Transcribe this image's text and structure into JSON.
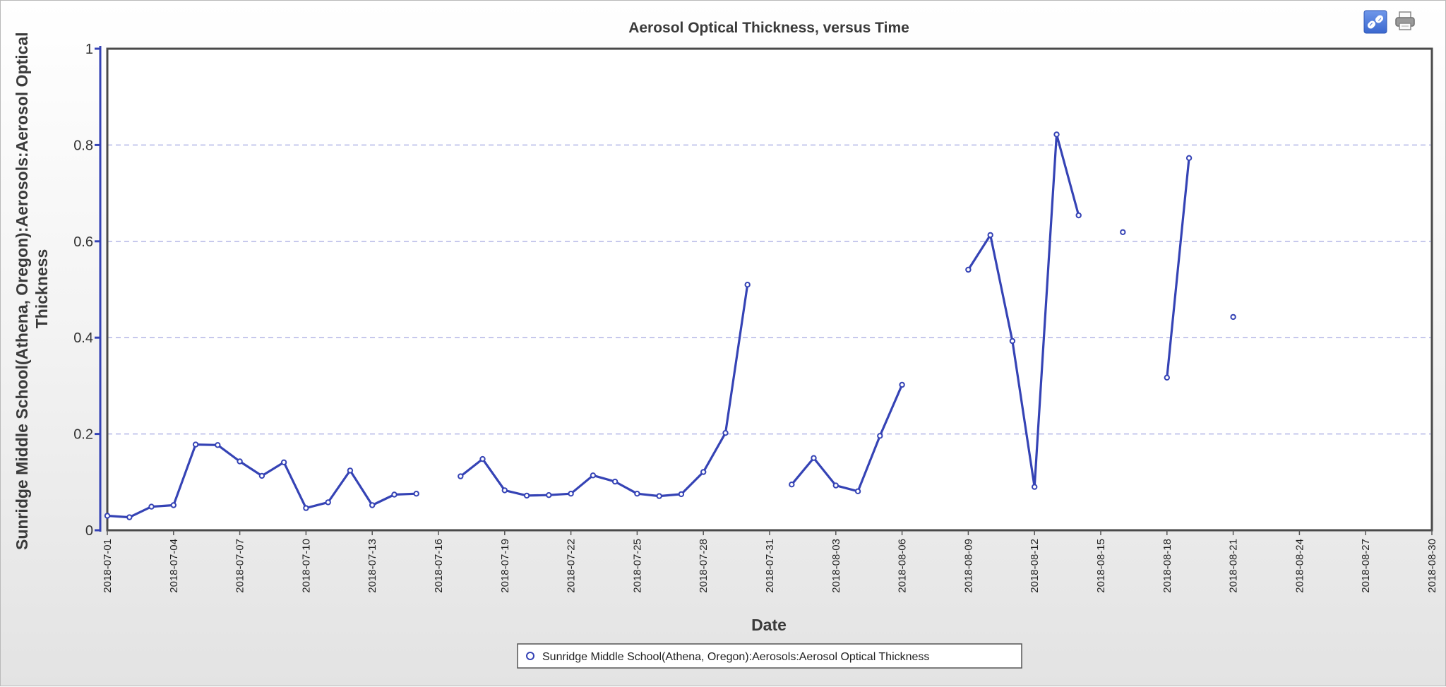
{
  "toolbar": {
    "link_icon": "link-icon",
    "print_icon": "print-icon",
    "accent": "#4a7de0"
  },
  "chart_data": {
    "type": "line",
    "title": "Aerosol Optical Thickness, versus Time",
    "xlabel": "Date",
    "ylabel": "Sunridge Middle School(Athena, Oregon):Aerosols:Aerosol Optical Thickness",
    "ylabel_lines": [
      "Sunridge Middle School(Athena, Oregon):Aerosols:Aerosol Optical",
      "Thickness"
    ],
    "ylim": [
      0,
      1
    ],
    "yticks": [
      0,
      0.2,
      0.4,
      0.6,
      0.8,
      1
    ],
    "ytick_labels": [
      "0",
      "0.2",
      "0.4",
      "0.6",
      "0.8",
      "1"
    ],
    "xlim": [
      "2018-07-01",
      "2018-08-30"
    ],
    "xticks": [
      "2018-07-01",
      "2018-07-04",
      "2018-07-07",
      "2018-07-10",
      "2018-07-13",
      "2018-07-16",
      "2018-07-19",
      "2018-07-22",
      "2018-07-25",
      "2018-07-28",
      "2018-07-31",
      "2018-08-03",
      "2018-08-06",
      "2018-08-09",
      "2018-08-12",
      "2018-08-15",
      "2018-08-18",
      "2018-08-21",
      "2018-08-24",
      "2018-08-27",
      "2018-08-30"
    ],
    "grid": "horizontal dashed",
    "legend_position": "bottom-center",
    "series": [
      {
        "name": "Sunridge Middle School(Athena, Oregon):Aerosols:Aerosol Optical Thickness",
        "color": "#3543b5",
        "marker": "open-circle",
        "segments": [
          [
            [
              "2018-07-01",
              0.03
            ],
            [
              "2018-07-02",
              0.027
            ],
            [
              "2018-07-03",
              0.049
            ],
            [
              "2018-07-04",
              0.052
            ],
            [
              "2018-07-05",
              0.178
            ],
            [
              "2018-07-06",
              0.177
            ],
            [
              "2018-07-07",
              0.143
            ],
            [
              "2018-07-08",
              0.113
            ],
            [
              "2018-07-09",
              0.141
            ],
            [
              "2018-07-10",
              0.046
            ],
            [
              "2018-07-11",
              0.058
            ],
            [
              "2018-07-12",
              0.124
            ],
            [
              "2018-07-13",
              0.052
            ],
            [
              "2018-07-14",
              0.074
            ],
            [
              "2018-07-15",
              0.076
            ]
          ],
          [
            [
              "2018-07-17",
              0.112
            ],
            [
              "2018-07-18",
              0.148
            ],
            [
              "2018-07-19",
              0.083
            ],
            [
              "2018-07-20",
              0.072
            ],
            [
              "2018-07-21",
              0.073
            ],
            [
              "2018-07-22",
              0.076
            ],
            [
              "2018-07-23",
              0.114
            ],
            [
              "2018-07-24",
              0.101
            ],
            [
              "2018-07-25",
              0.076
            ],
            [
              "2018-07-26",
              0.071
            ],
            [
              "2018-07-27",
              0.075
            ],
            [
              "2018-07-28",
              0.121
            ],
            [
              "2018-07-29",
              0.202
            ],
            [
              "2018-07-30",
              0.51
            ]
          ],
          [
            [
              "2018-08-01",
              0.095
            ],
            [
              "2018-08-02",
              0.15
            ],
            [
              "2018-08-03",
              0.093
            ],
            [
              "2018-08-04",
              0.081
            ],
            [
              "2018-08-05",
              0.196
            ],
            [
              "2018-08-06",
              0.302
            ]
          ],
          [
            [
              "2018-08-09",
              0.541
            ],
            [
              "2018-08-10",
              0.613
            ],
            [
              "2018-08-11",
              0.393
            ],
            [
              "2018-08-12",
              0.09
            ],
            [
              "2018-08-13",
              0.822
            ],
            [
              "2018-08-14",
              0.654
            ]
          ],
          [
            [
              "2018-08-16",
              0.619
            ]
          ],
          [
            [
              "2018-08-18",
              0.317
            ],
            [
              "2018-08-19",
              0.773
            ]
          ],
          [
            [
              "2018-08-21",
              0.443
            ]
          ]
        ]
      }
    ]
  }
}
